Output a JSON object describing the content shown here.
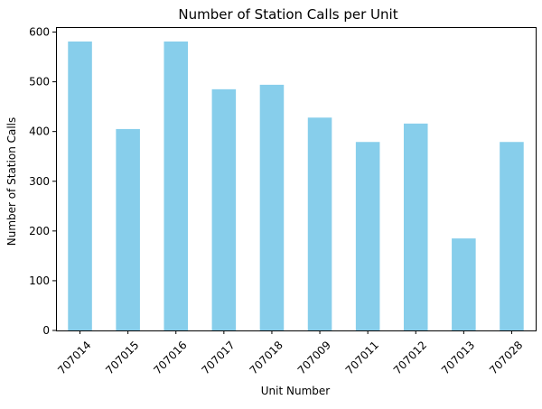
{
  "chart_data": {
    "type": "bar",
    "title": "Number of Station Calls per Unit",
    "xlabel": "Unit Number",
    "ylabel": "Number of Station Calls",
    "categories": [
      "707014",
      "707015",
      "707016",
      "707017",
      "707018",
      "707009",
      "707011",
      "707012",
      "707013",
      "707028"
    ],
    "values": [
      581,
      405,
      581,
      485,
      494,
      428,
      379,
      416,
      185,
      379
    ],
    "ylim": [
      0,
      610
    ],
    "yticks": [
      0,
      100,
      200,
      300,
      400,
      500,
      600
    ],
    "bar_color": "#87ceeb",
    "grid": false,
    "legend": false
  }
}
